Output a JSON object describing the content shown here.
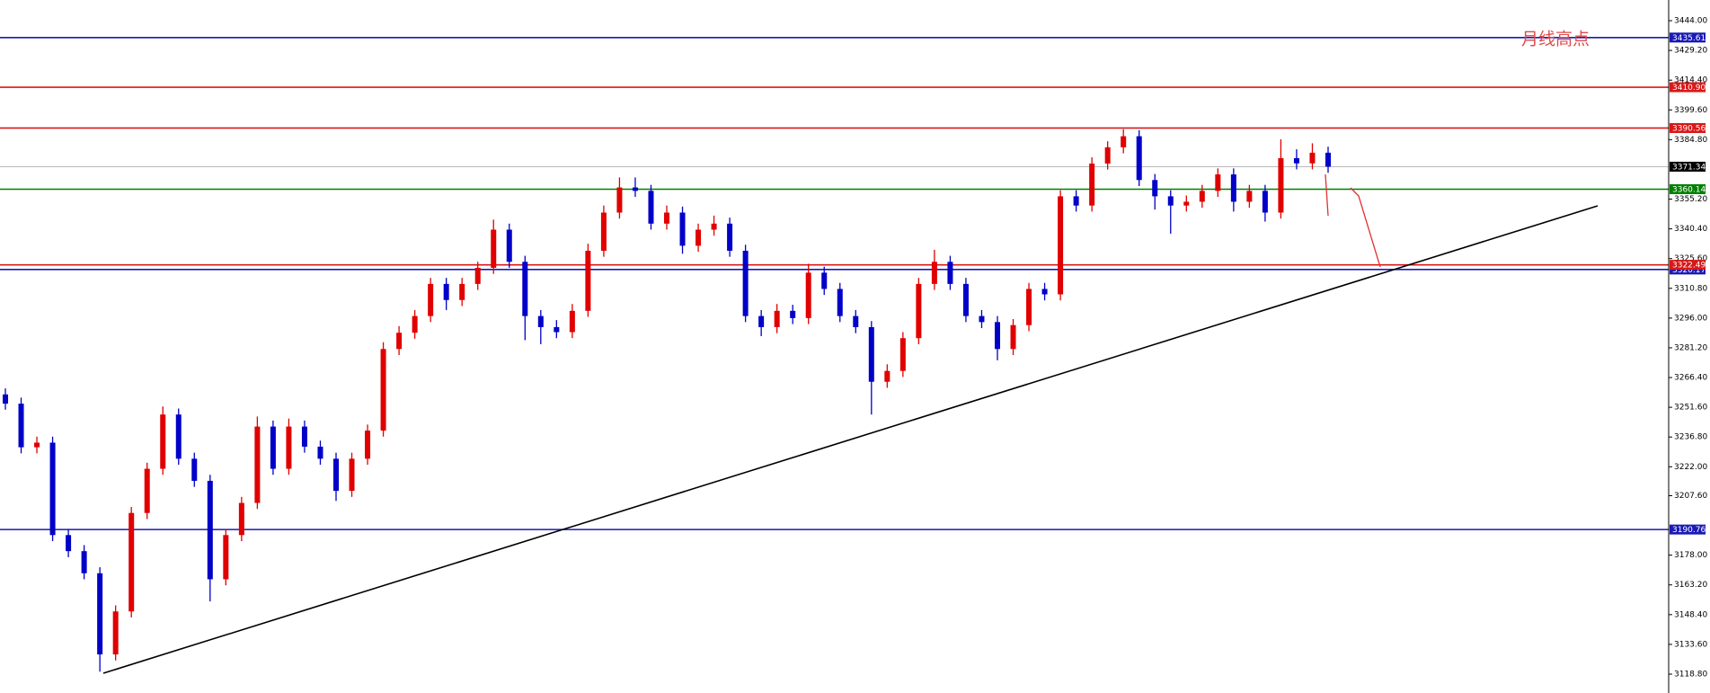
{
  "chart_data": {
    "type": "candlestick",
    "annotation": "月线高点",
    "ylim": [
      3109.4,
      3454.3
    ],
    "yticks": [
      {
        "value": 3444,
        "label": "3444.00"
      },
      {
        "value": 3429.2,
        "label": "3429.20"
      },
      {
        "value": 3414.4,
        "label": "3414.40"
      },
      {
        "value": 3399.6,
        "label": "3399.60"
      },
      {
        "value": 3384.8,
        "label": "3384.80"
      },
      {
        "value": 3355.2,
        "label": "3355.20"
      },
      {
        "value": 3340.4,
        "label": "3340.40"
      },
      {
        "value": 3325.6,
        "label": "3325.60"
      },
      {
        "value": 3310.8,
        "label": "3310.80"
      },
      {
        "value": 3296,
        "label": "3296.00"
      },
      {
        "value": 3281.2,
        "label": "3281.20"
      },
      {
        "value": 3266.4,
        "label": "3266.40"
      },
      {
        "value": 3251.6,
        "label": "3251.60"
      },
      {
        "value": 3236.8,
        "label": "3236.80"
      },
      {
        "value": 3222,
        "label": "3222.00"
      },
      {
        "value": 3207.6,
        "label": "3207.60"
      },
      {
        "value": 3178,
        "label": "3178.00"
      },
      {
        "value": 3163.2,
        "label": "3163.20"
      },
      {
        "value": 3148.4,
        "label": "3148.40"
      },
      {
        "value": 3133.6,
        "label": "3133.60"
      },
      {
        "value": 3118.8,
        "label": "3118.80"
      }
    ],
    "levels": [
      {
        "value": 3435.61,
        "label": "3435.61",
        "color": "#1a1ab4"
      },
      {
        "value": 3410.9,
        "label": "3410.90",
        "color": "#d81818"
      },
      {
        "value": 3390.56,
        "label": "3390.56",
        "color": "#d81818"
      },
      {
        "value": 3371.34,
        "label": "3371.34",
        "color": "#000000"
      },
      {
        "value": 3360.14,
        "label": "3360.14",
        "color": "#008000"
      },
      {
        "value": 3320.17,
        "label": "3320.17",
        "color": "#1a1ab4"
      },
      {
        "value": 3322.49,
        "label": "3322.49",
        "color": "#d81818"
      },
      {
        "value": 3190.76,
        "label": "3190.76",
        "color": "#1a1ab4"
      }
    ],
    "up_color": "#e00000",
    "down_color": "#0000c8",
    "open": [
      3258,
      3253.4,
      3231.7,
      3234,
      3188,
      3180,
      3169,
      3128.6,
      3150,
      3199,
      3221,
      3248,
      3226,
      3215,
      3166,
      3188,
      3204,
      3242,
      3221,
      3242,
      3232,
      3226,
      3210,
      3226,
      3240,
      3280.6,
      3288.7,
      3297,
      3313,
      3305,
      3313,
      3321,
      3340,
      3324,
      3297,
      3291.5,
      3289,
      3299.6,
      3329.5,
      3348.5,
      3361,
      3359.3,
      3343,
      3348.5,
      3332,
      3340,
      3343,
      3329.5,
      3297,
      3291.5,
      3299.6,
      3296,
      3318.6,
      3310.5,
      3297,
      3291.5,
      3264.3,
      3269.7,
      3286,
      3313,
      3324,
      3313,
      3297,
      3294,
      3280.6,
      3292.5,
      3310.5,
      3307.8,
      3356.6,
      3352,
      3372.9,
      3381,
      3386.5,
      3364.7,
      3356.6,
      3352,
      3353.9,
      3359.3,
      3367.5,
      3353.9,
      3359.3,
      3348.5,
      3375.6,
      3373,
      3378.3
    ],
    "high": [
      3261,
      3256.4,
      3237,
      3237,
      3191,
      3183,
      3172,
      3153,
      3202,
      3224,
      3252,
      3251,
      3229,
      3218,
      3191,
      3207,
      3247,
      3245,
      3246,
      3245,
      3235,
      3229,
      3229,
      3243,
      3284,
      3292,
      3300,
      3316,
      3316,
      3316,
      3324,
      3345,
      3343,
      3327,
      3300,
      3295,
      3303,
      3333,
      3352,
      3366,
      3366,
      3362.3,
      3352,
      3351.5,
      3343,
      3347,
      3346,
      3332.5,
      3300,
      3303,
      3302.6,
      3323,
      3321.6,
      3313.5,
      3300,
      3294.5,
      3273,
      3289,
      3316,
      3330,
      3327,
      3316,
      3300,
      3297,
      3295.5,
      3313.5,
      3313.5,
      3359.6,
      3359.6,
      3376,
      3384,
      3390,
      3389.5,
      3367.7,
      3359.6,
      3357,
      3362.3,
      3370.5,
      3370.5,
      3362.3,
      3362.3,
      3385,
      3380,
      3383,
      3381.3
    ],
    "low": [
      3250.4,
      3228.7,
      3228.7,
      3185,
      3177,
      3166,
      3120,
      3125.6,
      3147,
      3196,
      3218,
      3223,
      3212,
      3155,
      3163,
      3185,
      3201,
      3218,
      3218,
      3229,
      3223,
      3205,
      3207,
      3223,
      3237,
      3277.6,
      3285.7,
      3294,
      3300,
      3302,
      3310,
      3318,
      3321,
      3285,
      3283,
      3286,
      3286,
      3296.6,
      3326.5,
      3345.5,
      3356.3,
      3340,
      3340,
      3328,
      3329,
      3337,
      3326.5,
      3294,
      3287,
      3288.5,
      3293,
      3293,
      3307.5,
      3294,
      3288.5,
      3248,
      3261.3,
      3266.7,
      3283,
      3310,
      3310,
      3294,
      3291,
      3275,
      3277.6,
      3289.5,
      3304.8,
      3304.8,
      3349,
      3349,
      3369.9,
      3378,
      3361.7,
      3350,
      3338,
      3349,
      3350.9,
      3356.3,
      3349,
      3350.9,
      3344,
      3345.5,
      3370,
      3370,
      3368.3
    ],
    "close": [
      3253.4,
      3231.7,
      3234,
      3188,
      3180,
      3169,
      3128.6,
      3150,
      3199,
      3221,
      3248,
      3226,
      3215,
      3166,
      3188,
      3204,
      3242,
      3221,
      3242,
      3232,
      3226,
      3210,
      3226,
      3240,
      3280.6,
      3288.7,
      3297,
      3313,
      3305,
      3313,
      3321,
      3340,
      3324,
      3297,
      3291.5,
      3289,
      3299.6,
      3329.5,
      3348.5,
      3361,
      3359.3,
      3343,
      3348.5,
      3332,
      3340,
      3343,
      3329.5,
      3297,
      3291.5,
      3299.6,
      3296,
      3318.6,
      3310.5,
      3297,
      3291.5,
      3264.3,
      3269.7,
      3286,
      3313,
      3324,
      3313,
      3297,
      3294,
      3280.6,
      3292.5,
      3310.5,
      3307.8,
      3356.6,
      3352,
      3372.9,
      3381,
      3386.5,
      3364.7,
      3356.6,
      3352,
      3353.9,
      3359.3,
      3367.5,
      3353.9,
      3359.3,
      3348.5,
      3375.6,
      3373,
      3378.3,
      3371.34
    ]
  }
}
